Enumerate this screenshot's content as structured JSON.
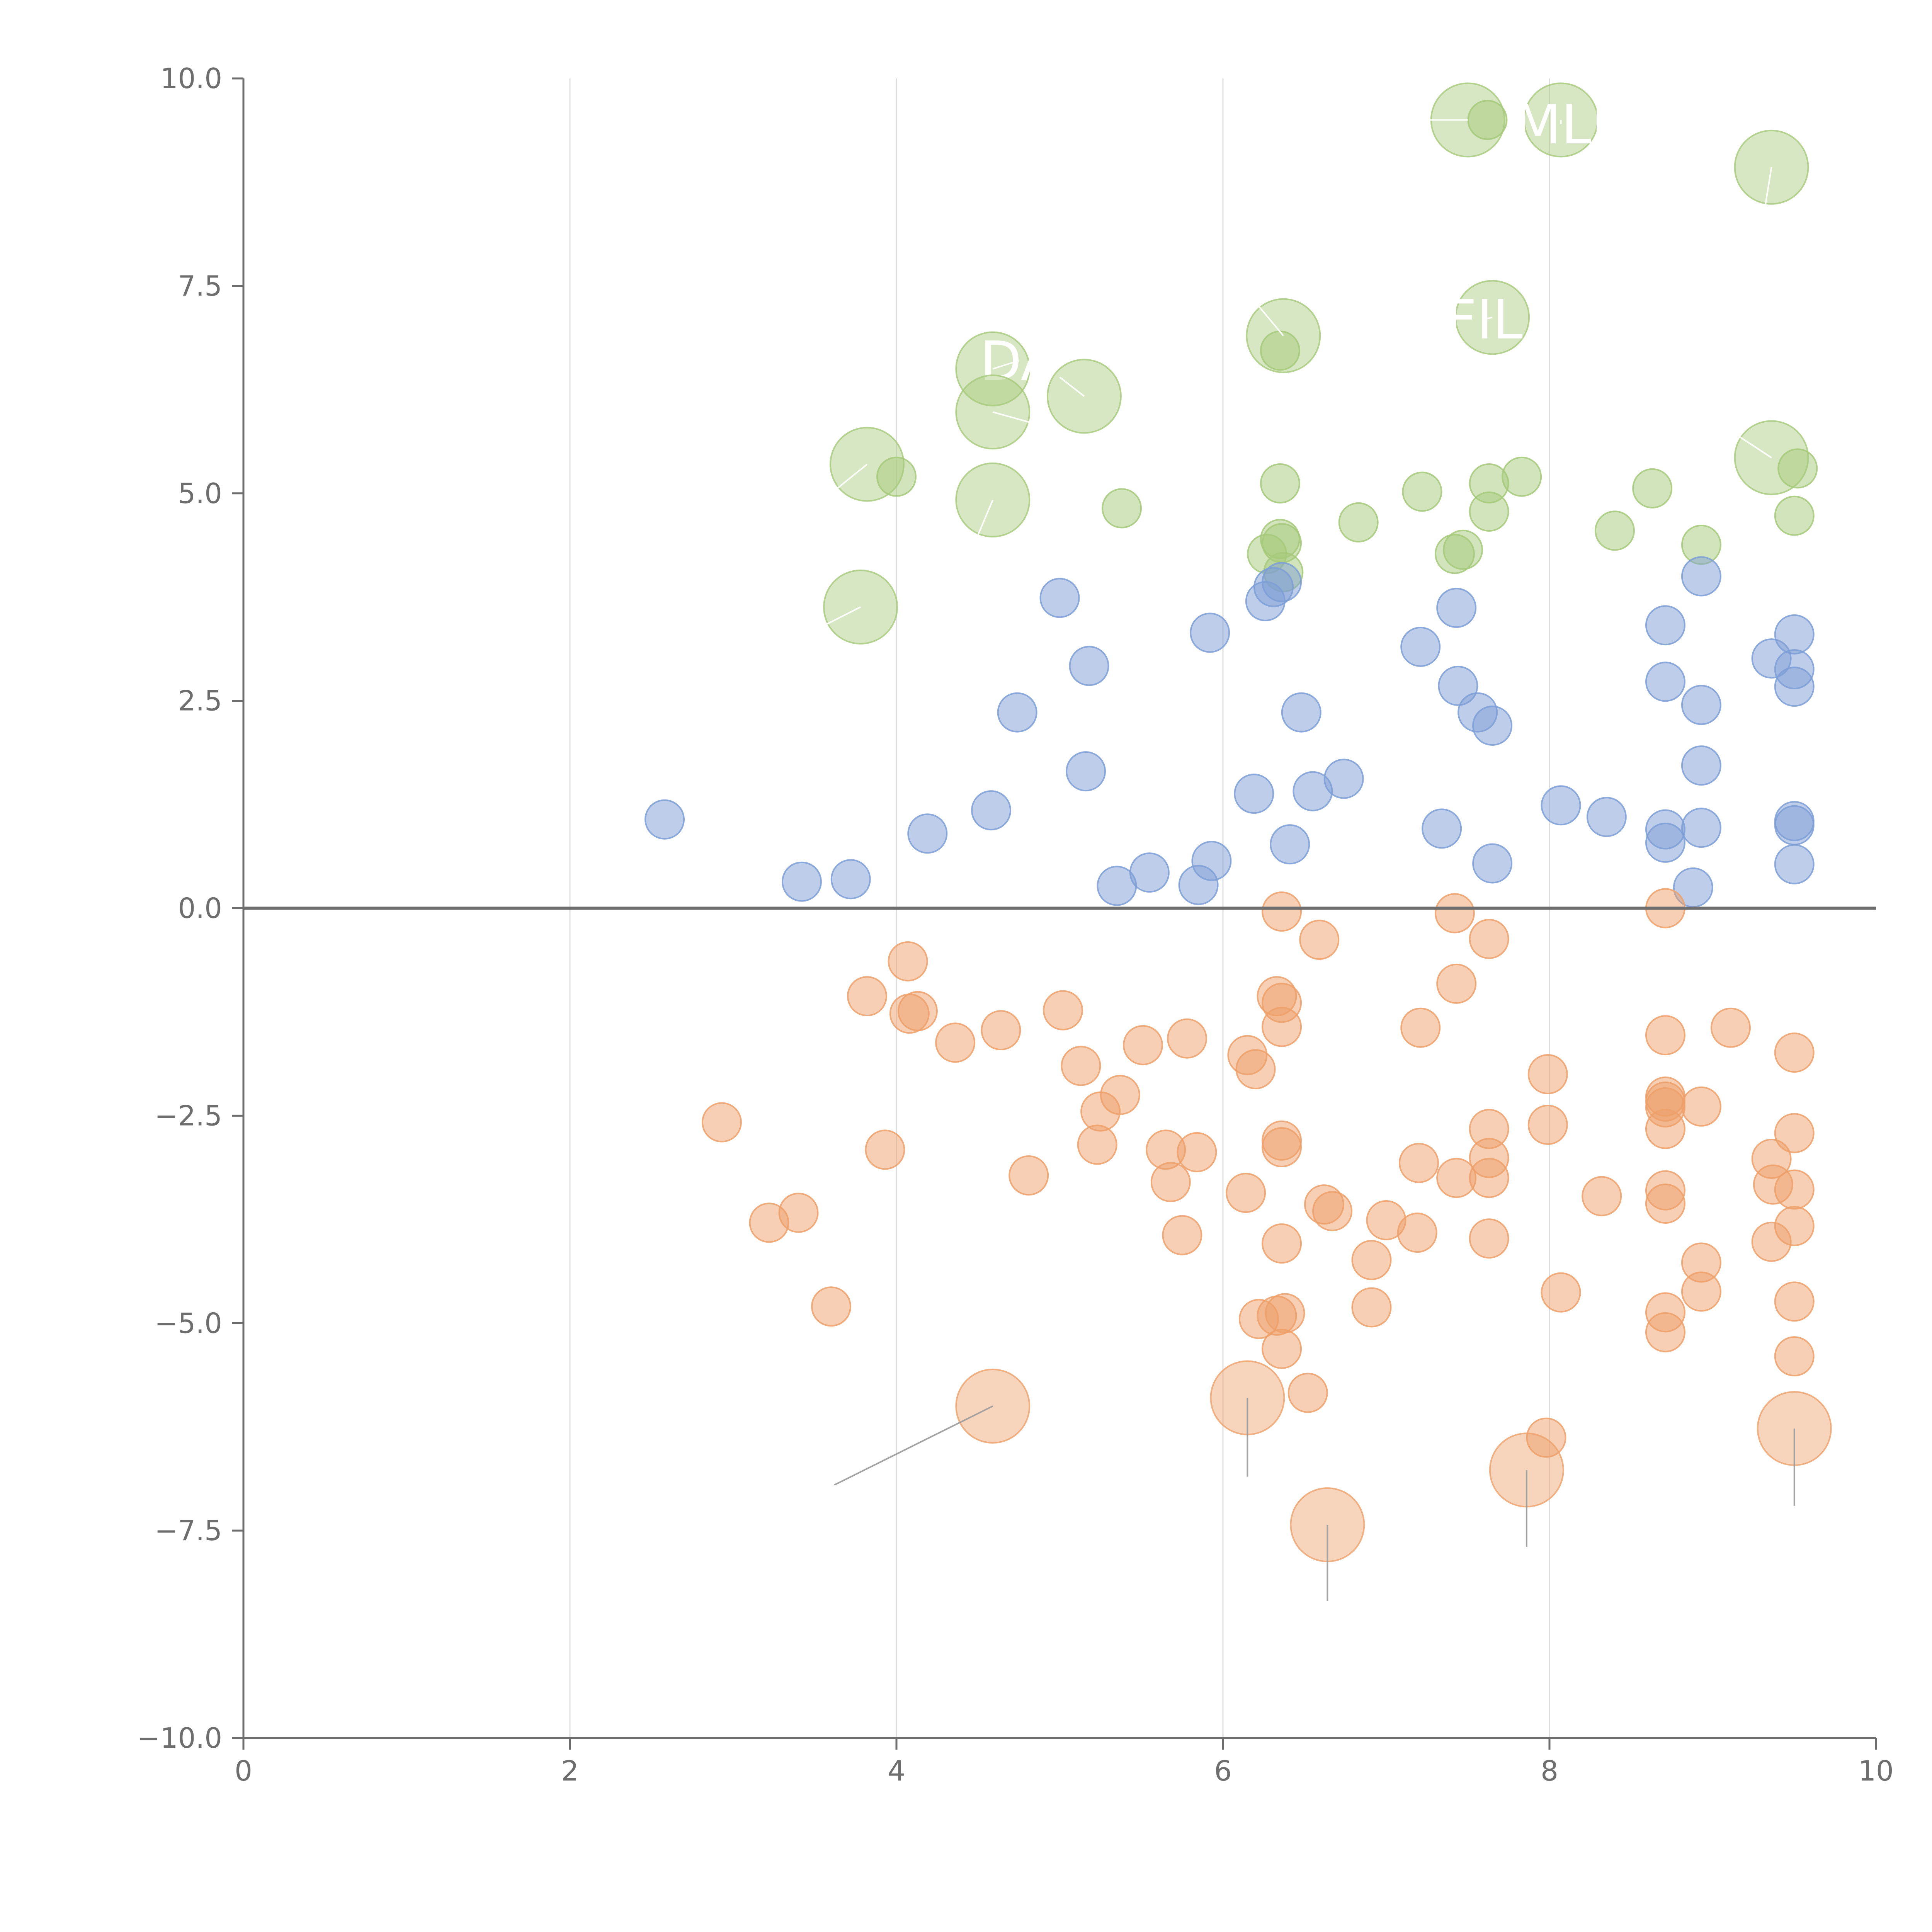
{
  "chart_data": {
    "type": "scatter",
    "title": "",
    "xlabel": "",
    "ylabel": "",
    "xlim": [
      0,
      10
    ],
    "ylim": [
      -10,
      10
    ],
    "x_ticks": [
      "0",
      "2",
      "4",
      "6",
      "8",
      "10"
    ],
    "y_ticks": [
      "10.0",
      "7.5",
      "5.0",
      "2.5",
      "0.0",
      "−2.5",
      "−5.0",
      "−7.5",
      "−10.0"
    ],
    "grid": "vertical gridlines at x ticks",
    "zero_line": 0,
    "colors": {
      "green": "#a6c97a",
      "blue": "#7d9ed6",
      "orange": "#eda06a",
      "leader": "#9a9a9a",
      "axis": "#6e6e6e",
      "grid": "#dcdcdc"
    },
    "series": [
      {
        "name": "green",
        "points": [
          [
            7.62,
            9.5
          ],
          [
            4.0,
            5.2
          ],
          [
            5.38,
            4.82
          ],
          [
            6.35,
            5.12
          ],
          [
            7.22,
            5.02
          ],
          [
            7.63,
            5.12
          ],
          [
            7.83,
            5.2
          ],
          [
            8.63,
            5.06
          ],
          [
            9.52,
            5.3
          ],
          [
            9.5,
            4.73
          ],
          [
            8.93,
            4.38
          ],
          [
            8.4,
            4.55
          ],
          [
            7.63,
            4.78
          ],
          [
            7.47,
            4.32
          ],
          [
            7.42,
            4.27
          ],
          [
            6.83,
            4.65
          ],
          [
            6.35,
            4.45
          ],
          [
            6.36,
            4.4
          ],
          [
            6.27,
            4.27
          ],
          [
            6.37,
            4.05
          ],
          [
            6.35,
            6.72
          ]
        ]
      },
      {
        "name": "blue",
        "points": [
          [
            2.58,
            1.07
          ],
          [
            3.42,
            0.32
          ],
          [
            3.72,
            0.35
          ],
          [
            4.19,
            0.9
          ],
          [
            4.58,
            1.18
          ],
          [
            4.74,
            2.36
          ],
          [
            5.0,
            3.74
          ],
          [
            5.18,
            2.92
          ],
          [
            5.16,
            1.65
          ],
          [
            5.35,
            0.27
          ],
          [
            5.55,
            0.43
          ],
          [
            5.85,
            0.28
          ],
          [
            5.93,
            0.57
          ],
          [
            5.92,
            3.32
          ],
          [
            6.19,
            1.38
          ],
          [
            6.26,
            3.7
          ],
          [
            6.31,
            3.87
          ],
          [
            6.36,
            3.93
          ],
          [
            6.41,
            0.77
          ],
          [
            6.48,
            2.36
          ],
          [
            6.55,
            1.41
          ],
          [
            6.74,
            1.56
          ],
          [
            7.21,
            3.15
          ],
          [
            7.34,
            0.96
          ],
          [
            7.43,
            3.62
          ],
          [
            7.44,
            2.68
          ],
          [
            7.56,
            2.36
          ],
          [
            7.65,
            2.2
          ],
          [
            7.65,
            0.54
          ],
          [
            8.07,
            1.24
          ],
          [
            8.35,
            1.1
          ],
          [
            8.71,
            3.41
          ],
          [
            8.71,
            2.73
          ],
          [
            8.71,
            0.95
          ],
          [
            8.71,
            0.79
          ],
          [
            8.88,
            0.25
          ],
          [
            8.93,
            4.0
          ],
          [
            8.93,
            2.45
          ],
          [
            8.93,
            1.72
          ],
          [
            8.93,
            0.97
          ],
          [
            9.36,
            3.01
          ],
          [
            9.5,
            3.3
          ],
          [
            9.5,
            2.88
          ],
          [
            9.5,
            2.67
          ],
          [
            9.5,
            1.05
          ],
          [
            9.5,
            1.0
          ],
          [
            9.5,
            0.53
          ]
        ]
      },
      {
        "name": "orange",
        "points": [
          [
            2.93,
            -2.58
          ],
          [
            3.22,
            -3.79
          ],
          [
            3.4,
            -3.67
          ],
          [
            3.6,
            -4.8
          ],
          [
            3.82,
            -1.06
          ],
          [
            3.93,
            -2.91
          ],
          [
            4.07,
            -0.64
          ],
          [
            4.08,
            -1.27
          ],
          [
            4.13,
            -1.24
          ],
          [
            4.36,
            -1.62
          ],
          [
            4.64,
            -1.47
          ],
          [
            4.81,
            -3.22
          ],
          [
            5.02,
            -1.23
          ],
          [
            5.13,
            -1.9
          ],
          [
            5.23,
            -2.85
          ],
          [
            5.25,
            -2.45
          ],
          [
            5.37,
            -2.25
          ],
          [
            5.51,
            -1.65
          ],
          [
            5.65,
            -2.91
          ],
          [
            5.68,
            -3.3
          ],
          [
            5.75,
            -3.94
          ],
          [
            5.78,
            -1.57
          ],
          [
            5.84,
            -2.94
          ],
          [
            6.14,
            -3.43
          ],
          [
            6.15,
            -1.77
          ],
          [
            6.2,
            -1.94
          ],
          [
            6.22,
            -4.95
          ],
          [
            6.33,
            -1.06
          ],
          [
            6.33,
            -4.91
          ],
          [
            6.36,
            -5.31
          ],
          [
            6.36,
            -0.04
          ],
          [
            6.36,
            -1.14
          ],
          [
            6.36,
            -1.43
          ],
          [
            6.36,
            -2.8
          ],
          [
            6.36,
            -2.88
          ],
          [
            6.36,
            -4.04
          ],
          [
            6.38,
            -4.88
          ],
          [
            6.52,
            -5.84
          ],
          [
            6.59,
            -0.38
          ],
          [
            6.62,
            -3.57
          ],
          [
            6.67,
            -3.65
          ],
          [
            6.91,
            -4.24
          ],
          [
            6.91,
            -4.81
          ],
          [
            7.0,
            -3.76
          ],
          [
            7.19,
            -3.91
          ],
          [
            7.2,
            -3.07
          ],
          [
            7.21,
            -1.44
          ],
          [
            7.42,
            -0.06
          ],
          [
            7.43,
            -3.25
          ],
          [
            7.43,
            -0.91
          ],
          [
            7.63,
            -0.37
          ],
          [
            7.63,
            -2.66
          ],
          [
            7.63,
            -3.01
          ],
          [
            7.63,
            -3.25
          ],
          [
            7.63,
            -3.98
          ],
          [
            7.99,
            -2.0
          ],
          [
            7.99,
            -2.61
          ],
          [
            7.98,
            -6.38
          ],
          [
            8.07,
            -4.63
          ],
          [
            8.32,
            -3.47
          ],
          [
            8.71,
            0.0
          ],
          [
            8.71,
            -1.53
          ],
          [
            8.71,
            -2.27
          ],
          [
            8.71,
            -2.33
          ],
          [
            8.71,
            -2.4
          ],
          [
            8.71,
            -2.66
          ],
          [
            8.71,
            -3.4
          ],
          [
            8.71,
            -3.56
          ],
          [
            8.71,
            -4.87
          ],
          [
            8.71,
            -5.11
          ],
          [
            8.93,
            -2.39
          ],
          [
            8.93,
            -4.27
          ],
          [
            8.93,
            -4.62
          ],
          [
            9.11,
            -1.44
          ],
          [
            9.36,
            -3.02
          ],
          [
            9.37,
            -3.33
          ],
          [
            9.36,
            -4.02
          ],
          [
            9.5,
            -1.74
          ],
          [
            9.5,
            -2.71
          ],
          [
            9.5,
            -3.39
          ],
          [
            9.5,
            -3.83
          ],
          [
            9.5,
            -4.74
          ],
          [
            9.5,
            -5.4
          ]
        ]
      }
    ],
    "large_bubbles": [
      {
        "series": "green",
        "x": 7.5,
        "y": 9.5,
        "label": "",
        "tx": 7.2,
        "ty": 9.5
      },
      {
        "series": "green",
        "x": 8.07,
        "y": 9.5,
        "label": "MLI",
        "tx": 8.07,
        "ty": 9.45
      },
      {
        "series": "green",
        "x": 9.36,
        "y": 8.93,
        "label": "",
        "tx": 9.3,
        "ty": 8.2
      },
      {
        "series": "green",
        "x": 6.37,
        "y": 6.9,
        "label": "",
        "tx": 6.2,
        "ty": 7.3
      },
      {
        "series": "green",
        "x": 7.65,
        "y": 7.12,
        "label": "FIL",
        "tx": 7.6,
        "ty": 7.1
      },
      {
        "series": "green",
        "x": 4.59,
        "y": 6.5,
        "label": "DA",
        "tx": 4.75,
        "ty": 6.6
      },
      {
        "series": "green",
        "x": 5.15,
        "y": 6.17,
        "label": "",
        "tx": 5.0,
        "ty": 6.4
      },
      {
        "series": "green",
        "x": 4.59,
        "y": 5.98,
        "label": "",
        "tx": 5.1,
        "ty": 5.7
      },
      {
        "series": "green",
        "x": 9.36,
        "y": 5.43,
        "label": "",
        "tx": 9.15,
        "ty": 5.7
      },
      {
        "series": "green",
        "x": 3.82,
        "y": 5.35,
        "label": "",
        "tx": 3.6,
        "ty": 5.0
      },
      {
        "series": "green",
        "x": 4.59,
        "y": 4.92,
        "label": "",
        "tx": 4.5,
        "ty": 4.5
      },
      {
        "series": "green",
        "x": 3.78,
        "y": 3.63,
        "label": "",
        "tx": 3.55,
        "ty": 3.4
      },
      {
        "series": "orange",
        "x": 4.59,
        "y": -6.0,
        "label": "",
        "tx": 3.62,
        "ty": -6.95
      },
      {
        "series": "orange",
        "x": 6.15,
        "y": -5.9,
        "label": "",
        "tx": 6.15,
        "ty": -6.85
      },
      {
        "series": "orange",
        "x": 6.64,
        "y": -7.43,
        "label": "",
        "tx": 6.64,
        "ty": -8.35
      },
      {
        "series": "orange",
        "x": 7.86,
        "y": -6.77,
        "label": "",
        "tx": 7.86,
        "ty": -7.7
      },
      {
        "series": "orange",
        "x": 9.5,
        "y": -6.27,
        "label": "",
        "tx": 9.5,
        "ty": -7.2
      }
    ]
  }
}
